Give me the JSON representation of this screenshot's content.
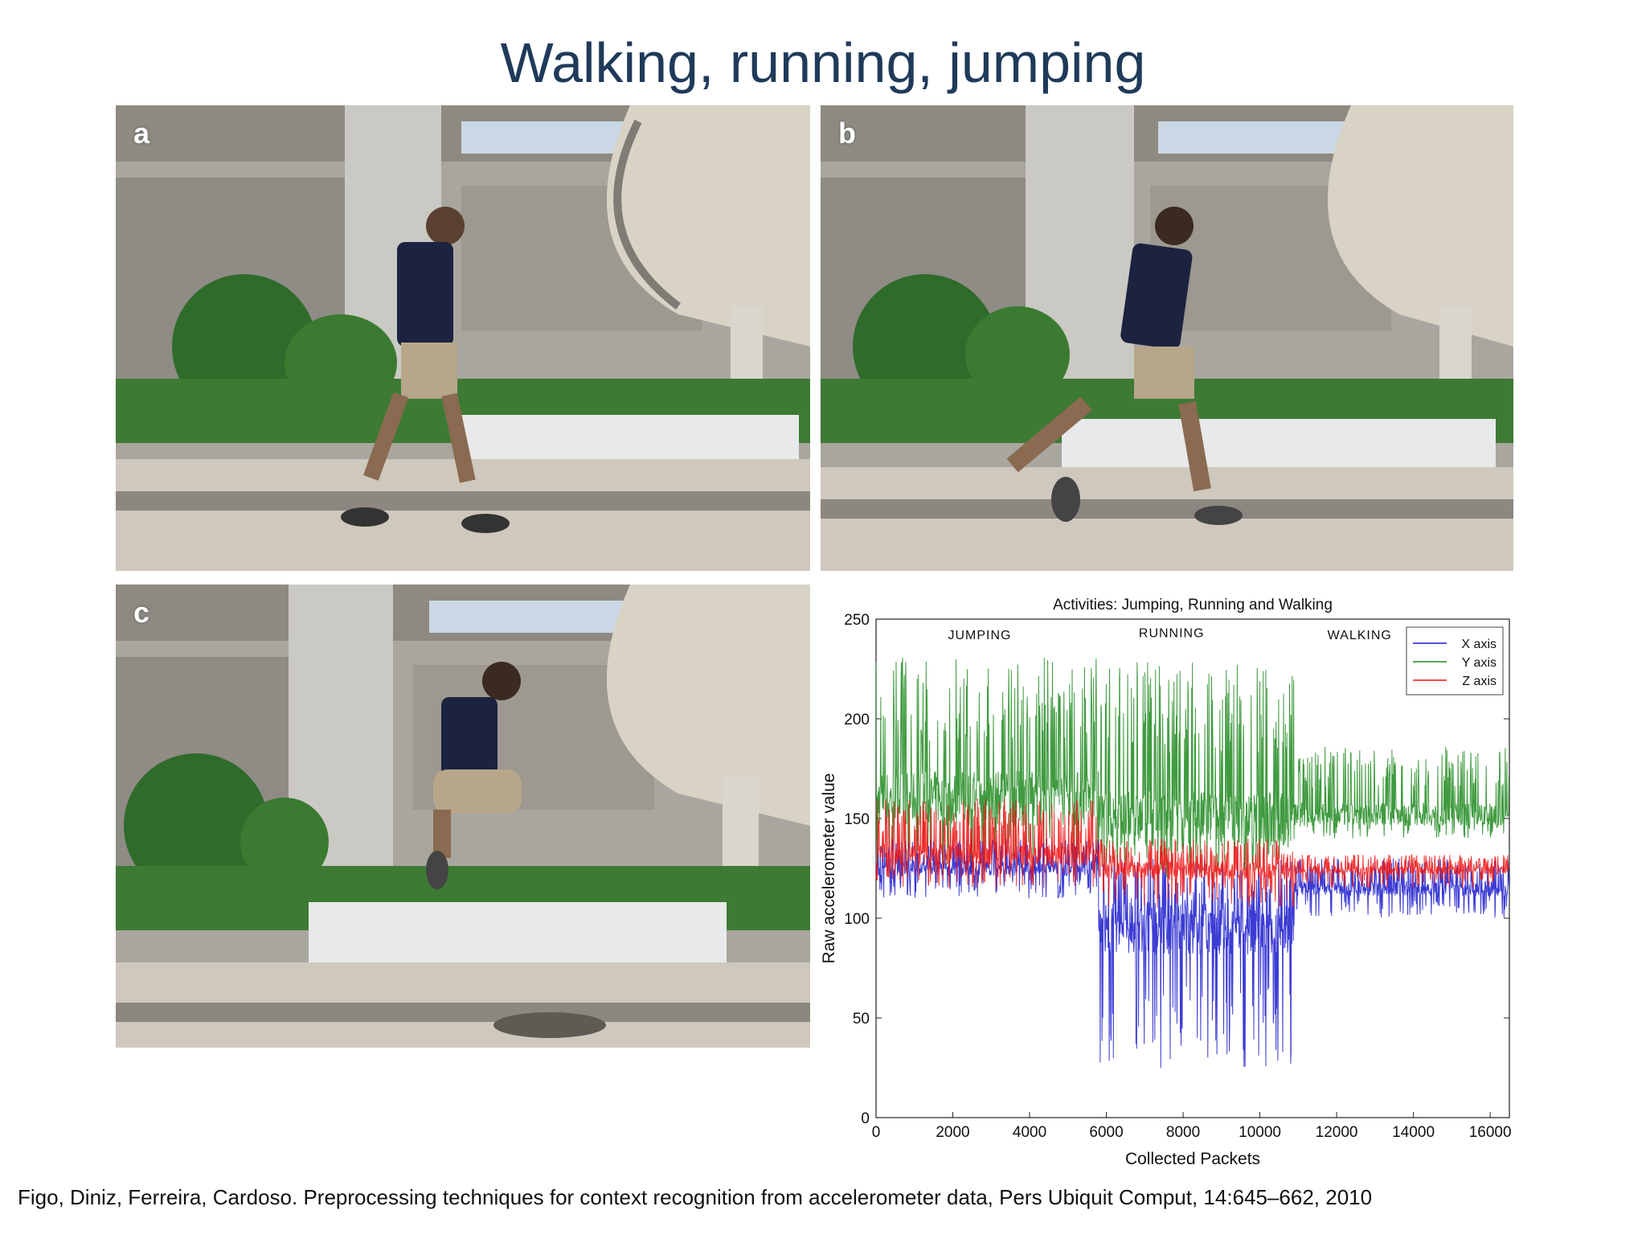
{
  "title": "Walking, running, jumping",
  "panels": {
    "a": {
      "letter": "a"
    },
    "b": {
      "letter": "b"
    },
    "c": {
      "letter": "c"
    }
  },
  "chart_data": {
    "type": "line",
    "title": "Activities: Jumping, Running and Walking",
    "xlabel": "Collected Packets",
    "ylabel": "Raw accelerometer value",
    "xlim": [
      0,
      16500
    ],
    "ylim": [
      0,
      250
    ],
    "xticks": [
      0,
      2000,
      4000,
      6000,
      8000,
      10000,
      12000,
      14000,
      16000
    ],
    "yticks": [
      0,
      50,
      100,
      150,
      200,
      250
    ],
    "grid": false,
    "legend_position": "top-right",
    "annotations": [
      {
        "text": "JUMPING",
        "x": 2700,
        "y": 240
      },
      {
        "text": "RUNNING",
        "x": 7700,
        "y": 241
      },
      {
        "text": "WALKING",
        "x": 12600,
        "y": 240
      }
    ],
    "segments": [
      {
        "activity": "JUMPING",
        "x_range": [
          0,
          5800
        ]
      },
      {
        "activity": "RUNNING",
        "x_range": [
          5800,
          10900
        ]
      },
      {
        "activity": "WALKING",
        "x_range": [
          10900,
          16500
        ]
      }
    ],
    "series": [
      {
        "name": "X axis",
        "color": "#1a1acc",
        "segment_means": [
          125,
          95,
          115
        ],
        "segment_min": [
          110,
          25,
          100
        ],
        "segment_max": [
          140,
          130,
          130
        ]
      },
      {
        "name": "Y axis",
        "color": "#1e8a1e",
        "segment_means": [
          160,
          150,
          152
        ],
        "segment_min": [
          120,
          120,
          140
        ],
        "segment_max": [
          232,
          230,
          186
        ]
      },
      {
        "name": "Z axis",
        "color": "#ee1111",
        "segment_means": [
          132,
          124,
          124
        ],
        "segment_min": [
          115,
          105,
          115
        ],
        "segment_max": [
          160,
          140,
          132
        ]
      }
    ],
    "colors": {
      "x": "#1a1acc",
      "y": "#1e8a1e",
      "z": "#ee1111"
    }
  },
  "citation": "Figo, Diniz, Ferreira, Cardoso. Preprocessing techniques for context recognition from accelerometer data, Pers Ubiquit Comput, 14:645–662, 2010"
}
